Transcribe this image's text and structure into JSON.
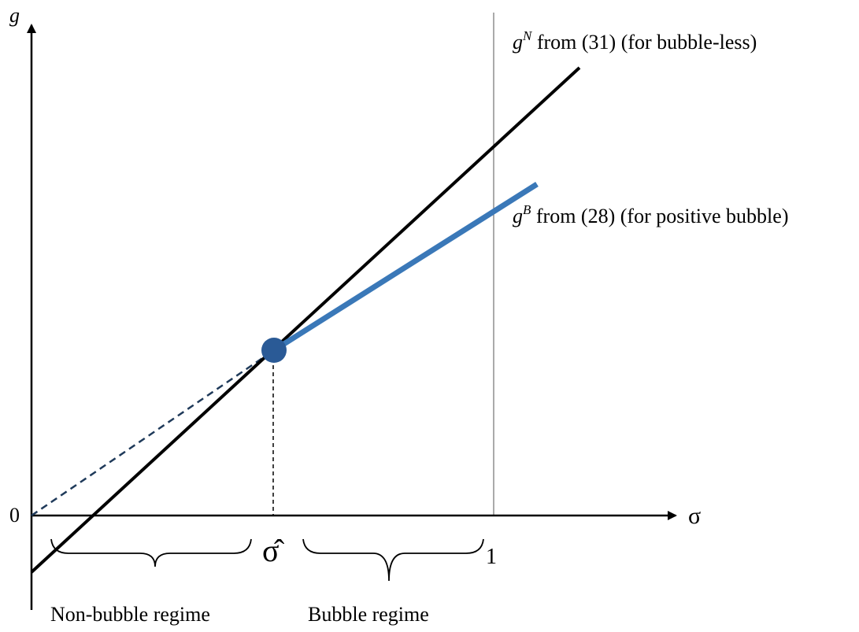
{
  "axes": {
    "y_label": "g",
    "x_label": "σ",
    "origin_label": "0",
    "one_label": "1"
  },
  "curves": {
    "gN": {
      "symbol": "g",
      "superscript": "N",
      "label": " from (31) (for bubble-less)",
      "color": "#000000"
    },
    "gB": {
      "symbol": "g",
      "superscript": "B",
      "label": " from (28) (for positive bubble)",
      "color": "#3a78b8"
    }
  },
  "threshold": {
    "label": "σ̂",
    "point_color": "#2a5a96"
  },
  "regimes": {
    "non_bubble": "Non-bubble regime",
    "bubble": "Bubble regime"
  }
}
